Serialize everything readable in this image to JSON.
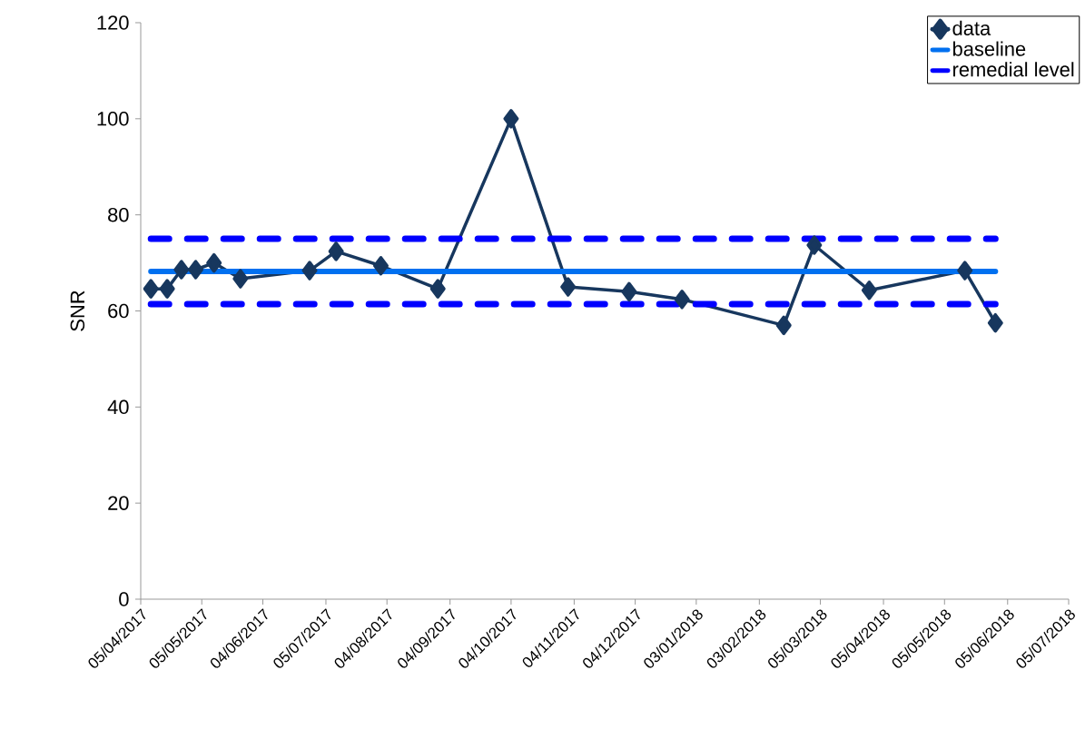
{
  "chart_data": {
    "type": "line",
    "ylabel": "SNR",
    "ylim": [
      0,
      120
    ],
    "yticks": [
      0,
      20,
      40,
      60,
      80,
      100,
      120
    ],
    "xlim": [
      "2017-04-05",
      "2018-07-05"
    ],
    "xticks": [
      {
        "value": "2017-04-05",
        "label": "05/04/2017"
      },
      {
        "value": "2017-05-05",
        "label": "05/05/2017"
      },
      {
        "value": "2017-06-04",
        "label": "04/06/2017"
      },
      {
        "value": "2017-07-05",
        "label": "05/07/2017"
      },
      {
        "value": "2017-08-04",
        "label": "04/08/2017"
      },
      {
        "value": "2017-09-04",
        "label": "04/09/2017"
      },
      {
        "value": "2017-10-04",
        "label": "04/10/2017"
      },
      {
        "value": "2017-11-04",
        "label": "04/11/2017"
      },
      {
        "value": "2017-12-04",
        "label": "04/12/2017"
      },
      {
        "value": "2018-01-03",
        "label": "03/01/2018"
      },
      {
        "value": "2018-02-03",
        "label": "03/02/2018"
      },
      {
        "value": "2018-03-05",
        "label": "05/03/2018"
      },
      {
        "value": "2018-04-05",
        "label": "05/04/2018"
      },
      {
        "value": "2018-05-05",
        "label": "05/05/2018"
      },
      {
        "value": "2018-06-05",
        "label": "05/06/2018"
      },
      {
        "value": "2018-07-05",
        "label": "05/07/2018"
      }
    ],
    "legend": "top right",
    "grid": false,
    "series": [
      {
        "name": "data",
        "color": "#17375e",
        "marker": "diamond",
        "line_style": "solid",
        "x": [
          "2017-04-10",
          "2017-04-18",
          "2017-04-25",
          "2017-05-02",
          "2017-05-11",
          "2017-05-24",
          "2017-06-27",
          "2017-07-10",
          "2017-08-01",
          "2017-08-29",
          "2017-10-04",
          "2017-11-01",
          "2017-12-01",
          "2017-12-27",
          "2018-02-15",
          "2018-03-02",
          "2018-03-29",
          "2018-05-15",
          "2018-05-30"
        ],
        "values": [
          64.6,
          64.6,
          68.6,
          68.6,
          70,
          66.7,
          68.4,
          72.4,
          69.4,
          64.6,
          100,
          65,
          64,
          62.4,
          57,
          73.7,
          64.3,
          68.4,
          57.5
        ]
      },
      {
        "name": "baseline",
        "color": "#0070f0",
        "marker": "none",
        "line_style": "solid",
        "x": [
          "2017-04-10",
          "2018-05-30"
        ],
        "values": [
          68.2,
          68.2
        ]
      },
      {
        "name": "remedial level",
        "color": "#0000ff",
        "marker": "none",
        "line_style": "dashed",
        "x": [
          "2017-04-10",
          "2018-05-30"
        ],
        "values": [
          75,
          75
        ]
      },
      {
        "color": "#0000ff",
        "marker": "none",
        "line_style": "dashed",
        "x": [
          "2017-04-10",
          "2018-05-30"
        ],
        "values": [
          61.4,
          61.4
        ]
      }
    ]
  }
}
